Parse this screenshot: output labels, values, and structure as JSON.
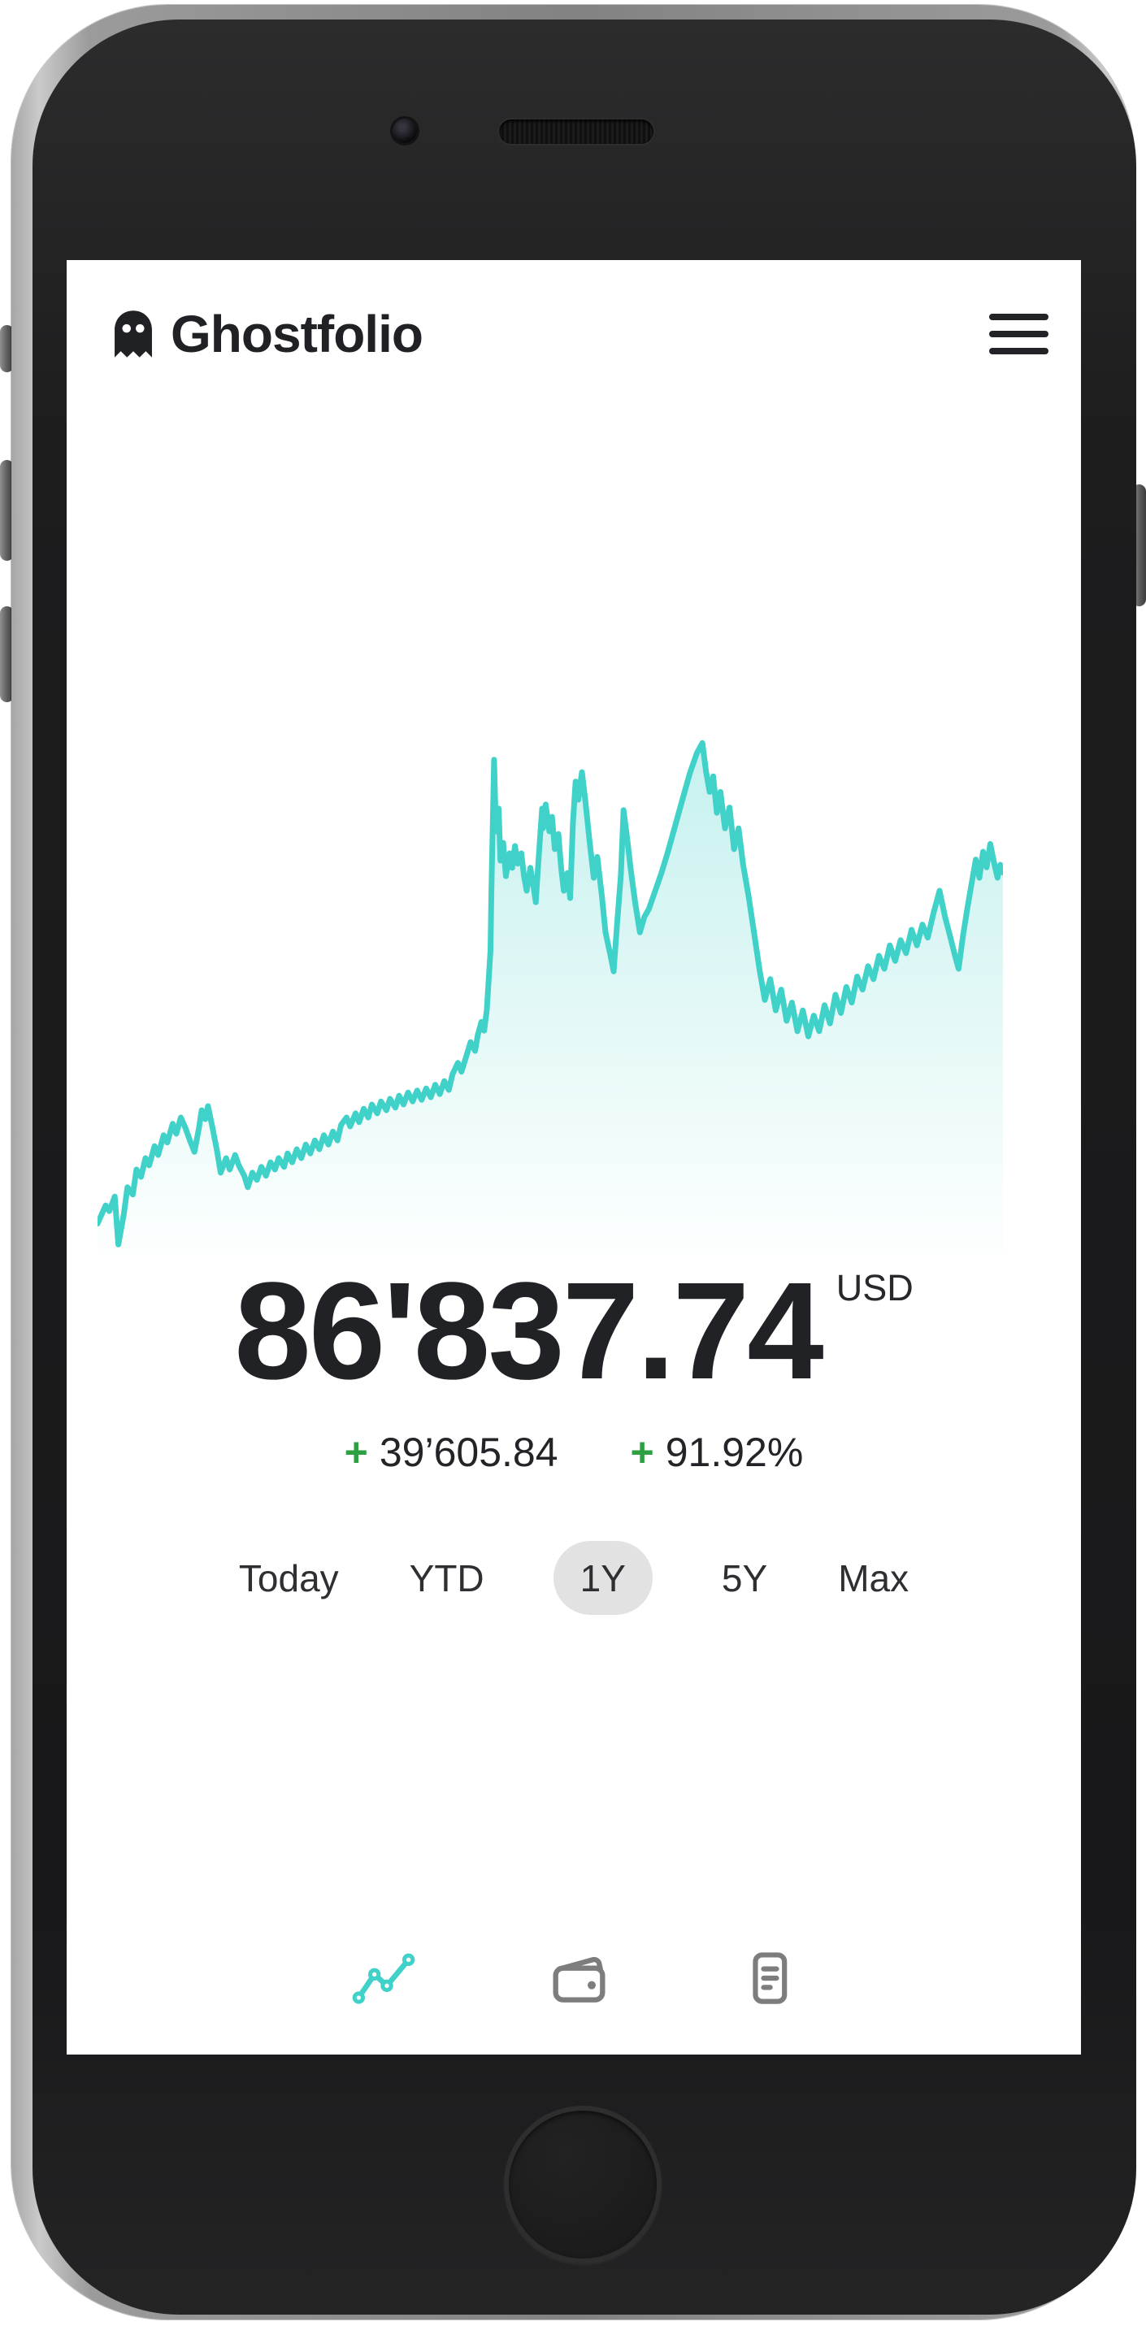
{
  "header": {
    "app_title": "Ghostfolio"
  },
  "portfolio": {
    "value": "86'837.74",
    "currency": "USD",
    "change": {
      "sign": "+",
      "absolute": "39’605.84",
      "percent": "91.92%"
    }
  },
  "ranges": {
    "options": [
      {
        "label": "Today",
        "selected": false
      },
      {
        "label": "YTD",
        "selected": false
      },
      {
        "label": "1Y",
        "selected": true
      },
      {
        "label": "5Y",
        "selected": false
      },
      {
        "label": "Max",
        "selected": false
      }
    ]
  },
  "nav": {
    "items": [
      {
        "name": "performance",
        "icon": "line-chart-icon",
        "active": true
      },
      {
        "name": "wallet",
        "icon": "wallet-icon",
        "active": false
      },
      {
        "name": "transactions",
        "icon": "reader-icon",
        "active": false
      }
    ]
  },
  "colors": {
    "accent_teal": "#40d1c8",
    "positive_green": "#2da042",
    "text_dark": "#222326",
    "pill_gray": "#e2e2e2",
    "inactive_gray": "#7d7d7d"
  },
  "chart_data": {
    "type": "area",
    "title": "Portfolio value over selected range (1Y)",
    "xlabel": "time (unlabeled axis)",
    "ylabel": "portfolio value (unlabeled axis)",
    "grid": false,
    "axes_shown": false,
    "end_value": "86'837.74",
    "line_color": "#40d1c8",
    "fill_style": "vertical teal gradient fading to white",
    "series": [
      {
        "name": "portfolio-value-1y",
        "points_pct": [
          [
            0,
            94
          ],
          [
            0.9,
            90.5
          ],
          [
            1.3,
            91.6
          ],
          [
            1.9,
            88.8
          ],
          [
            2.3,
            98
          ],
          [
            2.9,
            92.2
          ],
          [
            3.3,
            87
          ],
          [
            3.9,
            88.4
          ],
          [
            4.3,
            83.6
          ],
          [
            4.8,
            85
          ],
          [
            5.3,
            81.4
          ],
          [
            5.7,
            82.8
          ],
          [
            6.3,
            79.1
          ],
          [
            6.7,
            80.8
          ],
          [
            7.3,
            77
          ],
          [
            7.7,
            78.4
          ],
          [
            8.3,
            74.8
          ],
          [
            8.7,
            76.7
          ],
          [
            9.2,
            73.6
          ],
          [
            9.7,
            75.6
          ],
          [
            10.2,
            78
          ],
          [
            10.7,
            80.2
          ],
          [
            11.2,
            75.6
          ],
          [
            11.5,
            72.2
          ],
          [
            11.9,
            73.9
          ],
          [
            12.2,
            71.4
          ],
          [
            12.7,
            75.6
          ],
          [
            13.2,
            80
          ],
          [
            13.6,
            84.2
          ],
          [
            14.2,
            81.4
          ],
          [
            14.6,
            83.6
          ],
          [
            15.2,
            80.8
          ],
          [
            15.6,
            82.8
          ],
          [
            16.2,
            84.8
          ],
          [
            16.6,
            87
          ],
          [
            17.1,
            84.2
          ],
          [
            17.6,
            85.6
          ],
          [
            18.1,
            83.1
          ],
          [
            18.6,
            84.8
          ],
          [
            19.1,
            82.2
          ],
          [
            19.6,
            83.6
          ],
          [
            20,
            81.4
          ],
          [
            20.6,
            83.1
          ],
          [
            21,
            80.5
          ],
          [
            21.5,
            82.2
          ],
          [
            22,
            79.7
          ],
          [
            22.5,
            81.4
          ],
          [
            23,
            78.8
          ],
          [
            23.5,
            80.5
          ],
          [
            24,
            78
          ],
          [
            24.5,
            79.7
          ],
          [
            25,
            77
          ],
          [
            25.5,
            78.8
          ],
          [
            26,
            76.3
          ],
          [
            26.5,
            78
          ],
          [
            26.9,
            75
          ],
          [
            27.5,
            73.6
          ],
          [
            27.9,
            75.3
          ],
          [
            28.5,
            72.8
          ],
          [
            28.9,
            74.5
          ],
          [
            29.4,
            71.9
          ],
          [
            29.9,
            73.6
          ],
          [
            30.3,
            71.1
          ],
          [
            30.9,
            72.8
          ],
          [
            31.3,
            70.5
          ],
          [
            31.9,
            72.2
          ],
          [
            32.3,
            70
          ],
          [
            32.9,
            71.7
          ],
          [
            33.3,
            69.4
          ],
          [
            33.8,
            71.1
          ],
          [
            34.3,
            68.8
          ],
          [
            34.8,
            70.5
          ],
          [
            35.3,
            68.4
          ],
          [
            35.8,
            70.2
          ],
          [
            36.3,
            68
          ],
          [
            36.8,
            69.7
          ],
          [
            37.3,
            67.3
          ],
          [
            37.8,
            69.1
          ],
          [
            38.3,
            66.6
          ],
          [
            38.8,
            68.3
          ],
          [
            39.2,
            65.3
          ],
          [
            39.8,
            63.1
          ],
          [
            40.2,
            64.8
          ],
          [
            40.8,
            61.4
          ],
          [
            41.2,
            59.1
          ],
          [
            41.7,
            60.8
          ],
          [
            42,
            57.7
          ],
          [
            42.4,
            55.2
          ],
          [
            42.7,
            56.9
          ],
          [
            43,
            52.8
          ],
          [
            43.4,
            41.4
          ],
          [
            43.5,
            30
          ],
          [
            43.8,
            4.8
          ],
          [
            44,
            18.6
          ],
          [
            44.3,
            14.2
          ],
          [
            44.5,
            24.2
          ],
          [
            44.8,
            20.8
          ],
          [
            45.1,
            27.2
          ],
          [
            45.5,
            22.8
          ],
          [
            45.8,
            25.6
          ],
          [
            46.1,
            21.4
          ],
          [
            46.4,
            24.8
          ],
          [
            46.8,
            22.8
          ],
          [
            47.1,
            27.2
          ],
          [
            47.4,
            30
          ],
          [
            47.8,
            25.6
          ],
          [
            48.1,
            28.6
          ],
          [
            48.4,
            32.2
          ],
          [
            48.7,
            24.2
          ],
          [
            49.1,
            14.2
          ],
          [
            49.2,
            18
          ],
          [
            49.5,
            13.4
          ],
          [
            49.9,
            18.6
          ],
          [
            50.2,
            15.8
          ],
          [
            50.5,
            22
          ],
          [
            50.9,
            19.1
          ],
          [
            51.2,
            25.6
          ],
          [
            51.5,
            30
          ],
          [
            51.9,
            26.6
          ],
          [
            52.2,
            31.4
          ],
          [
            52.5,
            17
          ],
          [
            52.8,
            9
          ],
          [
            53.1,
            12.5
          ],
          [
            53.5,
            7.2
          ],
          [
            53.9,
            13
          ],
          [
            54.3,
            19.8
          ],
          [
            54.8,
            27.5
          ],
          [
            55.2,
            23.5
          ],
          [
            55.7,
            31
          ],
          [
            56.1,
            38
          ],
          [
            56.6,
            42
          ],
          [
            57,
            45.5
          ],
          [
            57.4,
            36
          ],
          [
            57.8,
            27
          ],
          [
            58.1,
            14.5
          ],
          [
            58.5,
            20
          ],
          [
            58.9,
            26
          ],
          [
            59.4,
            32.5
          ],
          [
            59.9,
            38
          ],
          [
            60.4,
            35
          ],
          [
            60.9,
            33.5
          ],
          [
            61.6,
            30
          ],
          [
            62.3,
            26.5
          ],
          [
            63,
            22.5
          ],
          [
            63.8,
            17.5
          ],
          [
            64.6,
            12.5
          ],
          [
            65.4,
            7.5
          ],
          [
            66.2,
            3.5
          ],
          [
            66.8,
            1.6
          ],
          [
            67.2,
            7
          ],
          [
            67.6,
            11
          ],
          [
            68,
            8
          ],
          [
            68.4,
            15
          ],
          [
            68.8,
            11
          ],
          [
            69.3,
            18
          ],
          [
            69.8,
            14
          ],
          [
            70.3,
            22
          ],
          [
            70.8,
            18
          ],
          [
            71.3,
            25
          ],
          [
            71.9,
            31
          ],
          [
            72.5,
            38
          ],
          [
            73.1,
            45
          ],
          [
            73.7,
            51
          ],
          [
            74.3,
            47
          ],
          [
            74.9,
            53
          ],
          [
            75.5,
            49
          ],
          [
            76.1,
            55
          ],
          [
            76.7,
            51.5
          ],
          [
            77.3,
            57
          ],
          [
            77.9,
            53
          ],
          [
            78.5,
            58
          ],
          [
            79.1,
            54
          ],
          [
            79.7,
            57
          ],
          [
            80.3,
            52
          ],
          [
            80.9,
            55.5
          ],
          [
            81.5,
            50
          ],
          [
            82.1,
            53.5
          ],
          [
            82.7,
            48.5
          ],
          [
            83.3,
            51.5
          ],
          [
            83.9,
            46.5
          ],
          [
            84.5,
            49
          ],
          [
            85.1,
            44.5
          ],
          [
            85.7,
            47
          ],
          [
            86.3,
            42.5
          ],
          [
            86.9,
            45
          ],
          [
            87.5,
            40.5
          ],
          [
            88.1,
            43.5
          ],
          [
            88.7,
            39.5
          ],
          [
            89.3,
            42
          ],
          [
            89.9,
            37.5
          ],
          [
            90.5,
            40.5
          ],
          [
            91.1,
            36.5
          ],
          [
            91.7,
            39
          ],
          [
            92.3,
            34.5
          ],
          [
            93,
            30
          ],
          [
            93.6,
            35
          ],
          [
            94.2,
            39
          ],
          [
            94.7,
            42.5
          ],
          [
            95.1,
            45
          ],
          [
            95.6,
            38.5
          ],
          [
            96.1,
            33
          ],
          [
            96.6,
            28
          ],
          [
            97,
            24
          ],
          [
            97.4,
            27.5
          ],
          [
            97.8,
            22.5
          ],
          [
            98.2,
            25.5
          ],
          [
            98.6,
            21
          ],
          [
            99,
            24.5
          ],
          [
            99.4,
            27.5
          ],
          [
            99.7,
            25
          ],
          [
            100,
            26.5
          ]
        ]
      }
    ]
  }
}
